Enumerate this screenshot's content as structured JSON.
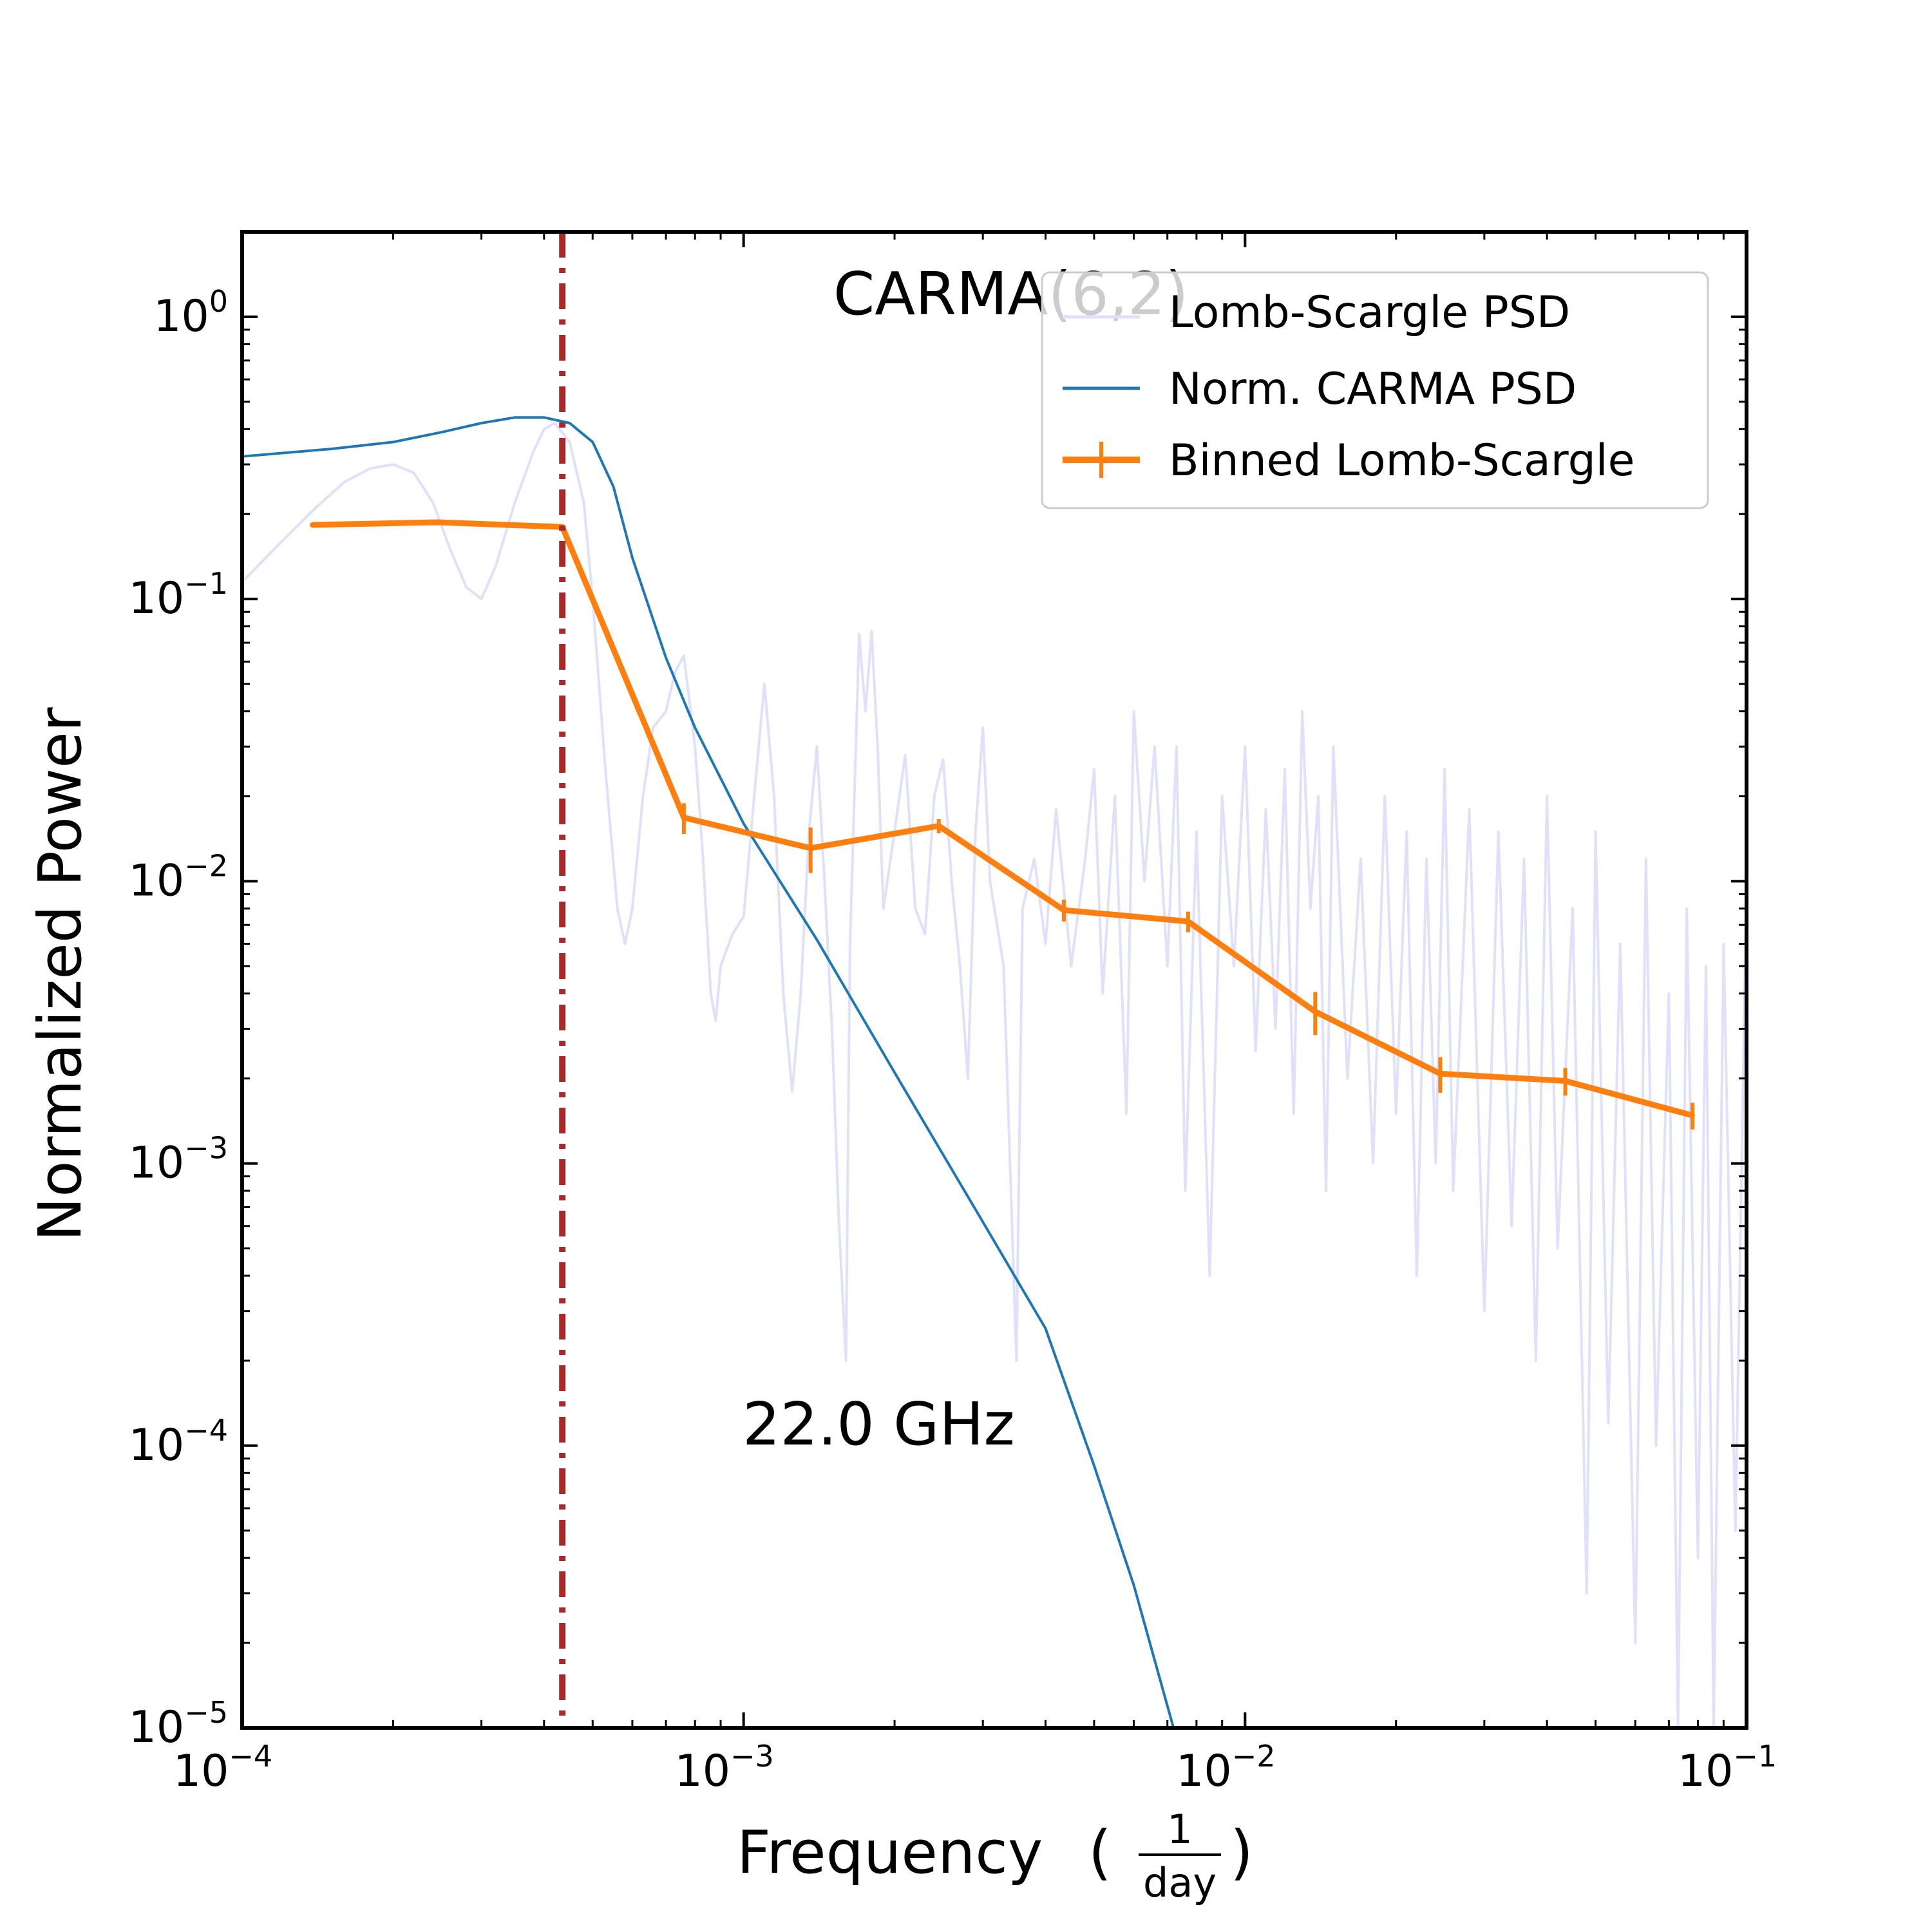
{
  "chart_data": {
    "type": "line",
    "x_scale": "log",
    "y_scale": "log",
    "xlim": [
      0.0001,
      0.1
    ],
    "ylim": [
      1e-05,
      2.0
    ],
    "xlabel": "Frequency",
    "xlabel_unit_numerator": "1",
    "xlabel_unit_denominator": "day",
    "ylabel": "Normalized Power",
    "x_ticks": [
      {
        "value": 0.0001,
        "base": "10",
        "exp": "−4"
      },
      {
        "value": 0.001,
        "base": "10",
        "exp": "−3"
      },
      {
        "value": 0.01,
        "base": "10",
        "exp": "−2"
      },
      {
        "value": 0.1,
        "base": "10",
        "exp": "−1"
      }
    ],
    "y_ticks": [
      {
        "value": 1,
        "base": "10",
        "exp": "0"
      },
      {
        "value": 0.1,
        "base": "10",
        "exp": "−1"
      },
      {
        "value": 0.01,
        "base": "10",
        "exp": "−2"
      },
      {
        "value": 0.001,
        "base": "10",
        "exp": "−3"
      },
      {
        "value": 0.0001,
        "base": "10",
        "exp": "−4"
      },
      {
        "value": 1e-05,
        "base": "10",
        "exp": "−5"
      }
    ],
    "annotations": {
      "model": "CARMA(6,2)",
      "band": "22.0 GHz"
    },
    "vline": {
      "x": 0.000435,
      "color": "#a52a2a",
      "style": "dash-dot"
    },
    "legend_position": "upper-right",
    "series": [
      {
        "name": "Lomb-Scargle PSD",
        "color": "#e0e0fa",
        "points": [
          [
            0.0001,
            0.115
          ],
          [
            0.00012,
            0.16
          ],
          [
            0.00014,
            0.21
          ],
          [
            0.00016,
            0.26
          ],
          [
            0.00018,
            0.29
          ],
          [
            0.0002,
            0.3
          ],
          [
            0.00022,
            0.28
          ],
          [
            0.00024,
            0.22
          ],
          [
            0.00026,
            0.15
          ],
          [
            0.00028,
            0.11
          ],
          [
            0.0003,
            0.1
          ],
          [
            0.00032,
            0.13
          ],
          [
            0.00035,
            0.22
          ],
          [
            0.00038,
            0.33
          ],
          [
            0.0004,
            0.4
          ],
          [
            0.00042,
            0.42
          ],
          [
            0.00045,
            0.36
          ],
          [
            0.00048,
            0.22
          ],
          [
            0.0005,
            0.1
          ],
          [
            0.00053,
            0.025
          ],
          [
            0.00056,
            0.008
          ],
          [
            0.00058,
            0.006
          ],
          [
            0.0006,
            0.008
          ],
          [
            0.00063,
            0.02
          ],
          [
            0.00066,
            0.035
          ],
          [
            0.0007,
            0.04
          ],
          [
            0.00073,
            0.055
          ],
          [
            0.00076,
            0.063
          ],
          [
            0.0008,
            0.03
          ],
          [
            0.00083,
            0.012
          ],
          [
            0.00086,
            0.004
          ],
          [
            0.00088,
            0.0032
          ],
          [
            0.0009,
            0.005
          ],
          [
            0.00095,
            0.0065
          ],
          [
            0.001,
            0.0075
          ],
          [
            0.00105,
            0.02
          ],
          [
            0.0011,
            0.05
          ],
          [
            0.00115,
            0.02
          ],
          [
            0.0012,
            0.004
          ],
          [
            0.00125,
            0.0018
          ],
          [
            0.0013,
            0.004
          ],
          [
            0.00135,
            0.015
          ],
          [
            0.0014,
            0.03
          ],
          [
            0.00145,
            0.01
          ],
          [
            0.0015,
            0.003
          ],
          [
            0.00155,
            0.0006
          ],
          [
            0.0016,
            0.0002
          ],
          [
            0.00163,
            0.006
          ],
          [
            0.0017,
            0.075
          ],
          [
            0.00175,
            0.04
          ],
          [
            0.0018,
            0.077
          ],
          [
            0.00185,
            0.03
          ],
          [
            0.0019,
            0.008
          ],
          [
            0.002,
            0.015
          ],
          [
            0.0021,
            0.028
          ],
          [
            0.0022,
            0.008
          ],
          [
            0.0023,
            0.0065
          ],
          [
            0.0024,
            0.02
          ],
          [
            0.0025,
            0.027
          ],
          [
            0.0026,
            0.01
          ],
          [
            0.0027,
            0.005
          ],
          [
            0.0028,
            0.002
          ],
          [
            0.0029,
            0.015
          ],
          [
            0.003,
            0.035
          ],
          [
            0.0031,
            0.01
          ],
          [
            0.0033,
            0.005
          ],
          [
            0.0035,
            0.0002
          ],
          [
            0.0036,
            0.008
          ],
          [
            0.0038,
            0.012
          ],
          [
            0.004,
            0.006
          ],
          [
            0.0042,
            0.018
          ],
          [
            0.0045,
            0.005
          ],
          [
            0.0048,
            0.012
          ],
          [
            0.005,
            0.025
          ],
          [
            0.0052,
            0.004
          ],
          [
            0.0055,
            0.02
          ],
          [
            0.0058,
            0.0015
          ],
          [
            0.006,
            0.04
          ],
          [
            0.0063,
            0.01
          ],
          [
            0.0066,
            0.03
          ],
          [
            0.007,
            0.005
          ],
          [
            0.0073,
            0.03
          ],
          [
            0.0076,
            0.0008
          ],
          [
            0.008,
            0.015
          ],
          [
            0.0085,
            0.0004
          ],
          [
            0.009,
            0.02
          ],
          [
            0.0095,
            0.005
          ],
          [
            0.01,
            0.03
          ],
          [
            0.0105,
            0.0025
          ],
          [
            0.011,
            0.018
          ],
          [
            0.0115,
            0.003
          ],
          [
            0.012,
            0.025
          ],
          [
            0.0125,
            0.0015
          ],
          [
            0.013,
            0.04
          ],
          [
            0.0135,
            0.008
          ],
          [
            0.014,
            0.02
          ],
          [
            0.0145,
            0.0008
          ],
          [
            0.015,
            0.03
          ],
          [
            0.016,
            0.002
          ],
          [
            0.017,
            0.012
          ],
          [
            0.018,
            0.001
          ],
          [
            0.019,
            0.02
          ],
          [
            0.02,
            0.0015
          ],
          [
            0.021,
            0.015
          ],
          [
            0.022,
            0.0004
          ],
          [
            0.023,
            0.012
          ],
          [
            0.024,
            0.001
          ],
          [
            0.025,
            0.025
          ],
          [
            0.026,
            0.0008
          ],
          [
            0.028,
            0.018
          ],
          [
            0.03,
            0.0003
          ],
          [
            0.032,
            0.015
          ],
          [
            0.034,
            0.0006
          ],
          [
            0.036,
            0.012
          ],
          [
            0.038,
            0.0002
          ],
          [
            0.04,
            0.02
          ],
          [
            0.042,
            0.0005
          ],
          [
            0.045,
            0.008
          ],
          [
            0.048,
            3e-05
          ],
          [
            0.05,
            0.015
          ],
          [
            0.053,
            0.00012
          ],
          [
            0.056,
            0.006
          ],
          [
            0.06,
            2e-05
          ],
          [
            0.063,
            0.012
          ],
          [
            0.066,
            0.0001
          ],
          [
            0.07,
            0.004
          ],
          [
            0.073,
            1e-05
          ],
          [
            0.076,
            0.008
          ],
          [
            0.08,
            4e-05
          ],
          [
            0.083,
            0.005
          ],
          [
            0.086,
            1e-05
          ],
          [
            0.09,
            0.006
          ],
          [
            0.095,
            5e-05
          ],
          [
            0.1,
            0.01
          ]
        ]
      },
      {
        "name": "Norm. CARMA PSD",
        "color": "#1f77b4",
        "points": [
          [
            0.0001,
            0.32
          ],
          [
            0.00015,
            0.34
          ],
          [
            0.0002,
            0.36
          ],
          [
            0.00025,
            0.39
          ],
          [
            0.0003,
            0.42
          ],
          [
            0.00035,
            0.44
          ],
          [
            0.0004,
            0.44
          ],
          [
            0.00045,
            0.42
          ],
          [
            0.0005,
            0.36
          ],
          [
            0.00055,
            0.25
          ],
          [
            0.0006,
            0.14
          ],
          [
            0.0007,
            0.062
          ],
          [
            0.0008,
            0.035
          ],
          [
            0.001,
            0.016
          ],
          [
            0.0014,
            0.0062
          ],
          [
            0.002,
            0.0021
          ],
          [
            0.003,
            0.00062
          ],
          [
            0.004,
            0.00026
          ],
          [
            0.005,
            8.5e-05
          ],
          [
            0.006,
            3.2e-05
          ],
          [
            0.0072,
            1e-05
          ]
        ]
      },
      {
        "name": "Binned Lomb-Scargle",
        "color": "#ff7f0e",
        "points": [
          [
            0.000138,
            0.183
          ],
          [
            0.000245,
            0.187
          ],
          [
            0.000435,
            0.18
          ],
          [
            0.00076,
            0.0168
          ],
          [
            0.00136,
            0.0131
          ],
          [
            0.00245,
            0.0157
          ],
          [
            0.00435,
            0.0079
          ],
          [
            0.0077,
            0.0072
          ],
          [
            0.0138,
            0.00345
          ],
          [
            0.0245,
            0.00208
          ],
          [
            0.0435,
            0.00196
          ],
          [
            0.078,
            0.00148
          ]
        ],
        "errors": [
          0,
          0,
          0,
          0.0021,
          0.0024,
          0.0009,
          0.0007,
          0.0006,
          0.0006,
          0.0003,
          0.00022,
          0.00016
        ]
      }
    ]
  }
}
